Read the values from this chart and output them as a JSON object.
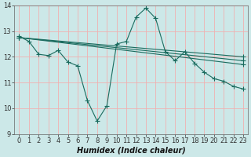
{
  "title": "",
  "xlabel": "Humidex (Indice chaleur)",
  "bg_color": "#cce8e8",
  "grid_color": "#f0b0b0",
  "line_color": "#1a6b5e",
  "xlim": [
    -0.5,
    23.5
  ],
  "ylim": [
    9,
    14
  ],
  "yticks": [
    9,
    10,
    11,
    12,
    13,
    14
  ],
  "xticks": [
    0,
    1,
    2,
    3,
    4,
    5,
    6,
    7,
    8,
    9,
    10,
    11,
    12,
    13,
    14,
    15,
    16,
    17,
    18,
    19,
    20,
    21,
    22,
    23
  ],
  "series": [
    {
      "x": [
        0,
        1,
        2,
        3,
        4,
        5,
        6,
        7,
        8,
        9,
        10,
        11,
        12,
        13,
        14,
        15,
        16,
        17,
        18,
        19,
        20,
        21,
        22,
        23
      ],
      "y": [
        12.8,
        12.6,
        12.1,
        12.05,
        12.25,
        11.8,
        11.65,
        10.3,
        9.5,
        10.1,
        12.5,
        12.6,
        13.55,
        13.9,
        13.5,
        12.2,
        11.85,
        12.2,
        11.75,
        11.4,
        11.15,
        11.05,
        10.85,
        10.75
      ]
    },
    {
      "x": [
        0,
        23
      ],
      "y": [
        12.75,
        11.7
      ]
    },
    {
      "x": [
        0,
        23
      ],
      "y": [
        12.75,
        11.85
      ]
    },
    {
      "x": [
        0,
        23
      ],
      "y": [
        12.75,
        12.0
      ]
    }
  ],
  "marker": "+",
  "markersize": 4,
  "linewidth": 0.8,
  "tick_fontsize": 6,
  "xlabel_fontsize": 7
}
